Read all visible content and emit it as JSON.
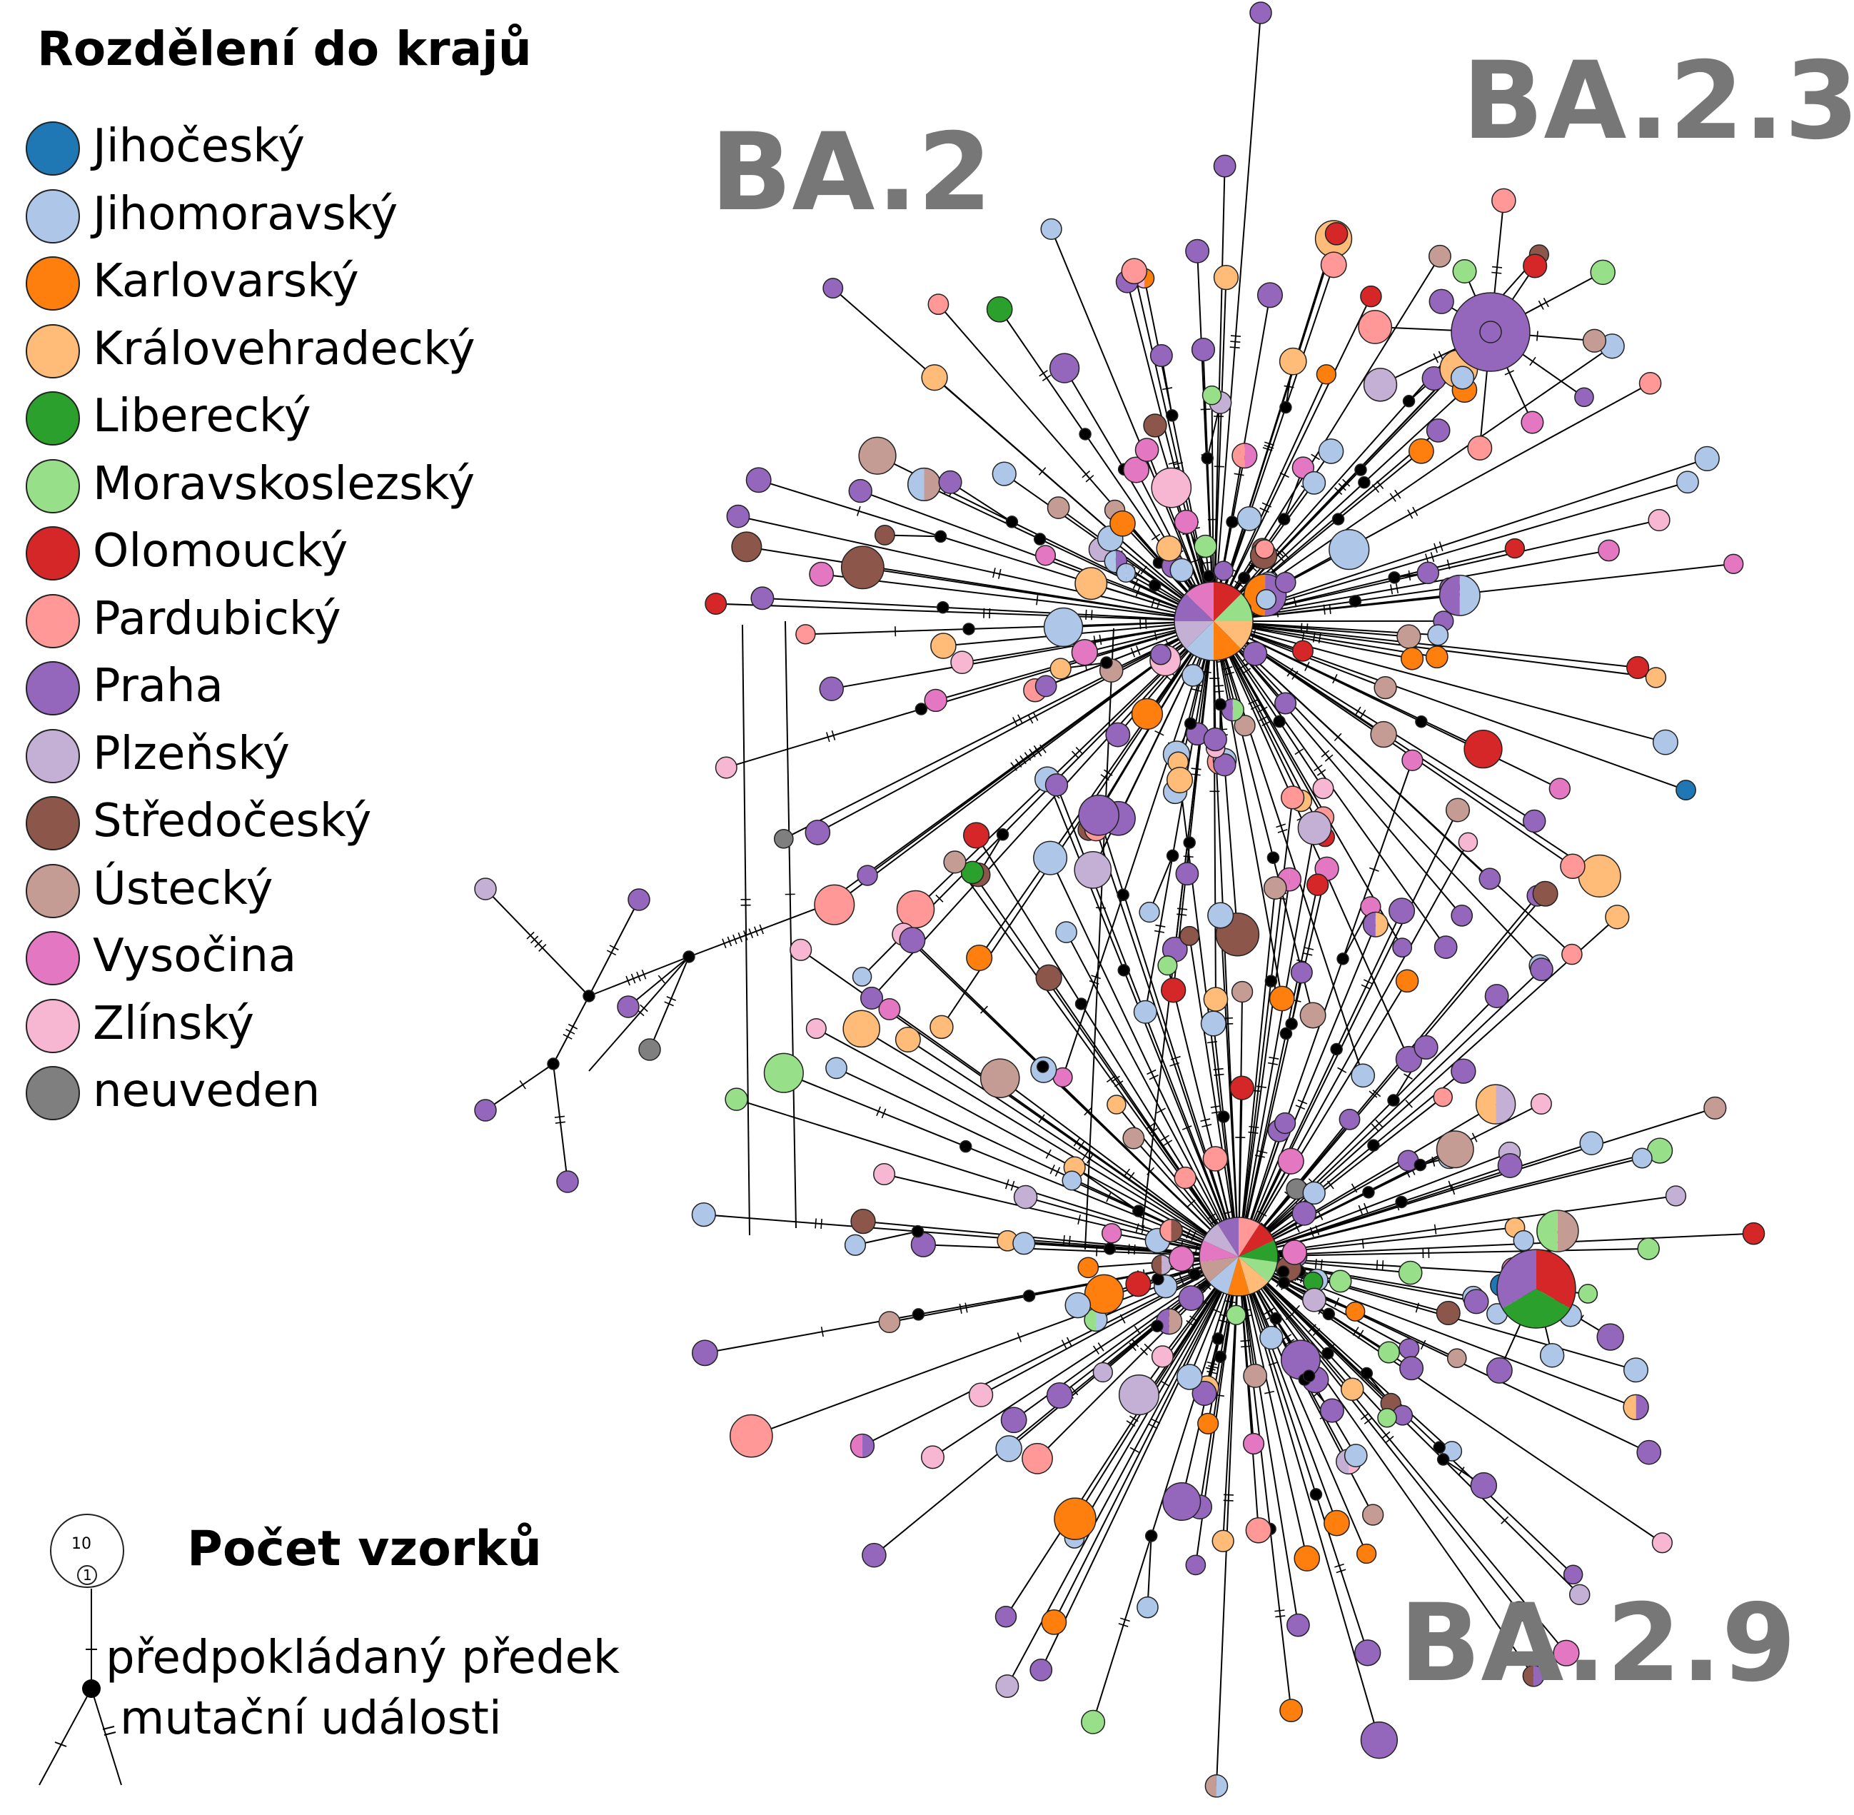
{
  "legend": {
    "title": "Rozdělení do krajů",
    "items": [
      {
        "label": "Jihočeský",
        "color": "#1f77b4"
      },
      {
        "label": "Jihomoravský",
        "color": "#aec7e8"
      },
      {
        "label": "Karlovarský",
        "color": "#ff7f0e"
      },
      {
        "label": "Královehradecký",
        "color": "#ffbb78"
      },
      {
        "label": "Liberecký",
        "color": "#2ca02c"
      },
      {
        "label": "Moravskoslezský",
        "color": "#98df8a"
      },
      {
        "label": "Olomoucký",
        "color": "#d62728"
      },
      {
        "label": "Pardubický",
        "color": "#ff9896"
      },
      {
        "label": "Praha",
        "color": "#9467bd"
      },
      {
        "label": "Plzeňský",
        "color": "#c5b0d5"
      },
      {
        "label": "Středočeský",
        "color": "#8c564b"
      },
      {
        "label": "Ústecký",
        "color": "#c49c94"
      },
      {
        "label": "Vysočina",
        "color": "#e377c2"
      },
      {
        "label": "Zlínský",
        "color": "#f7b6d2"
      },
      {
        "label": "neuveden",
        "color": "#7f7f7f"
      }
    ]
  },
  "lineages": {
    "ba2": "BA.2",
    "ba23": "BA.2.3",
    "ba29": "BA.2.9"
  },
  "sample_count": {
    "title": "Počet vzorků",
    "large_value": "10",
    "small_value": "1"
  },
  "key": {
    "ancestor": "předpokládaný předek",
    "mutations": "mutační události"
  }
}
